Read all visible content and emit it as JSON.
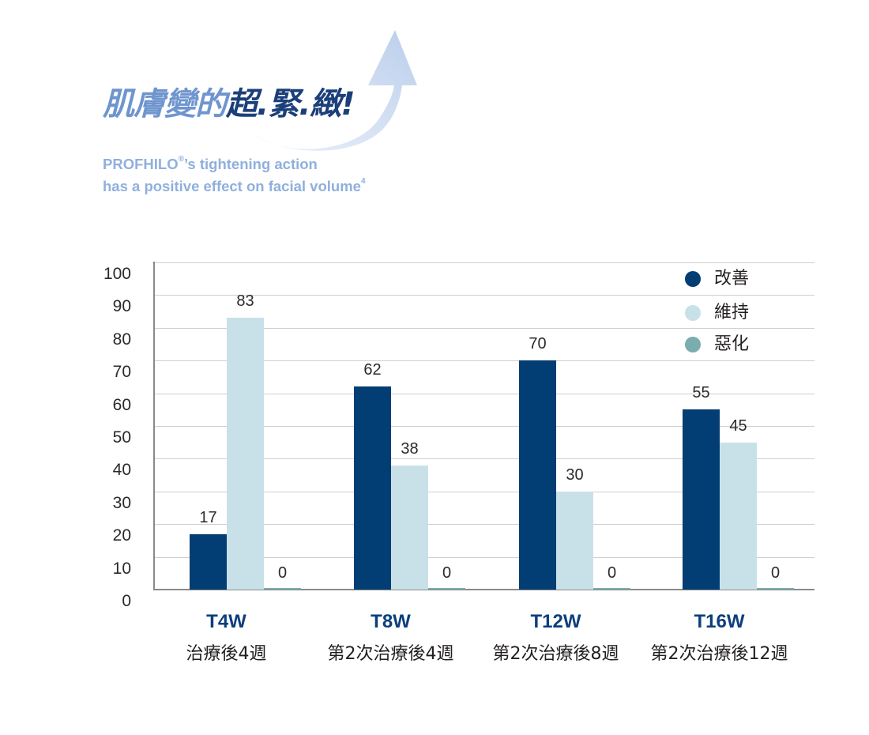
{
  "header": {
    "title_light": "肌膚變的",
    "title_dark": "超.緊.緻!",
    "subtitle_line1": "PROFHILO",
    "subtitle_reg": "®",
    "subtitle_line1_rest": "’s tightening action",
    "subtitle_line2": "has a positive effect on facial volume",
    "subtitle_footnote": "4"
  },
  "colors": {
    "improved": "#023d73",
    "maintained": "#c8e1e9",
    "worsened": "#7aadad",
    "title_light": "#6f95cf",
    "title_dark": "#1b3f7a",
    "subtitle": "#8fb0dd",
    "category": "#0c3f7c"
  },
  "chart_data": {
    "type": "bar",
    "title": "肌膚變的超.緊.緻!",
    "subtitle": "PROFHILO®’s tightening action has a positive effect on facial volume⁴",
    "categories": [
      "T4W",
      "T8W",
      "T12W",
      "T16W"
    ],
    "category_sublabels": [
      "治療後4週",
      "第2次治療後4週",
      "第2次治療後8週",
      "第2次治療後12週"
    ],
    "series": [
      {
        "name": "改善",
        "color": "#023d73",
        "values": [
          17,
          62,
          70,
          55
        ]
      },
      {
        "name": "維持",
        "color": "#c8e1e9",
        "values": [
          83,
          38,
          30,
          45
        ]
      },
      {
        "name": "惡化",
        "color": "#7aadad",
        "values": [
          0,
          0,
          0,
          0
        ]
      }
    ],
    "xlabel": "",
    "ylabel": "",
    "ylim": [
      0,
      100
    ],
    "yticks": [
      0,
      10,
      20,
      30,
      40,
      50,
      60,
      70,
      80,
      90,
      100
    ],
    "grid": true,
    "legend_position": "top-right",
    "data_labels": true
  },
  "legend": [
    {
      "label": "改善"
    },
    {
      "label": "維持"
    },
    {
      "label": "惡化"
    }
  ]
}
